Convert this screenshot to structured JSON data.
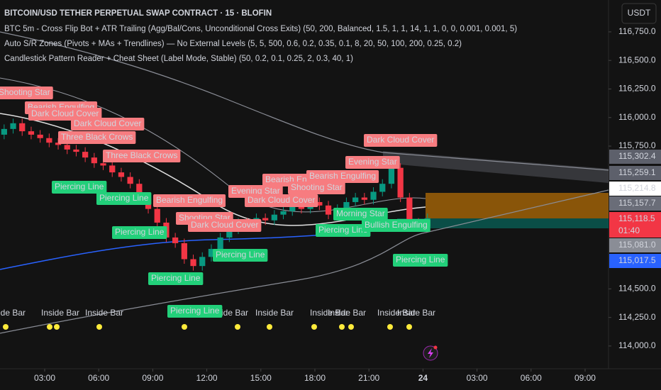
{
  "chart_data": {
    "type": "candlestick",
    "title": "BITCOIN/USD TETHER PERPETUAL SWAP CONTRACT · 15 · BLOFIN",
    "indicators": [
      "BTC 5m - Cross Flip Bot + ATR Trailing (Agg/Bal/Cons, Unconditional Cross Exits) (50, 200, Balanced, 1.5, 1, 1, 14, 1, 1, 0, 0, 0.001, 0.001, 5)",
      "Auto S/R Zones (Pivots + MAs + Trendlines) — No External Levels (5, 5, 500, 0.6, 0.2, 0.35, 0.1, 8, 20, 50, 100, 200, 0.25, 0.2)",
      "Candlestick Pattern Reader + Cheat Sheet (Label Mode, Stable) (50, 0.2, 0.1, 0.25, 2, 0.3, 40, 1)"
    ],
    "currency": "USDT",
    "countdown": "01:40",
    "up_color": "#089981",
    "down_color": "#f23645",
    "x": [
      0.75,
      1.25,
      1.75,
      2.25,
      2.75,
      3.25,
      3.75,
      4.25,
      4.75,
      5.25,
      5.75,
      6.25,
      6.75,
      7.25,
      7.75,
      8.25,
      8.75,
      9.25,
      9.75,
      10.25,
      10.75,
      11.25,
      11.75,
      12.25,
      12.75,
      13.25,
      13.75,
      14.25,
      14.75,
      15.25,
      15.75,
      16.25,
      16.75,
      17.25,
      17.75,
      18.25,
      18.75,
      19.25,
      19.75,
      20.25,
      20.75,
      21.25,
      21.75,
      22.25,
      22.75,
      23.25,
      23.75,
      24.25
    ],
    "open": [
      115850,
      115900,
      115950,
      115880,
      115850,
      115820,
      115780,
      115760,
      115720,
      115700,
      115650,
      115600,
      115580,
      115520,
      115480,
      115420,
      115300,
      115200,
      115080,
      114950,
      114900,
      114760,
      114700,
      114780,
      114850,
      114950,
      115020,
      115080,
      115060,
      115120,
      115100,
      115150,
      115180,
      115220,
      115200,
      115260,
      115230,
      115150,
      115200,
      115260,
      115300,
      115280,
      115350,
      115420,
      115560,
      115300,
      115080,
      115050
    ],
    "high": [
      115940,
      115990,
      115990,
      115920,
      115890,
      115860,
      115820,
      115800,
      115760,
      115740,
      115690,
      115640,
      115620,
      115560,
      115520,
      115460,
      115340,
      115240,
      115120,
      114990,
      114940,
      114800,
      114820,
      114890,
      114990,
      115060,
      115120,
      115120,
      115160,
      115160,
      115190,
      115220,
      115260,
      115260,
      115300,
      115300,
      115270,
      115240,
      115300,
      115340,
      115340,
      115390,
      115460,
      115640,
      115600,
      115340,
      115120,
      115160
    ],
    "low": [
      115810,
      115860,
      115840,
      115810,
      115780,
      115740,
      115720,
      115680,
      115660,
      115610,
      115560,
      115540,
      115480,
      115440,
      115380,
      115260,
      115160,
      115040,
      114910,
      114860,
      114720,
      114660,
      114660,
      114740,
      114810,
      114910,
      114980,
      115020,
      115020,
      115060,
      115060,
      115110,
      115140,
      115160,
      115160,
      115190,
      115110,
      115110,
      115160,
      115220,
      115240,
      115240,
      115310,
      115380,
      115260,
      115040,
      115010,
      115010
    ],
    "close": [
      115900,
      115950,
      115880,
      115850,
      115820,
      115780,
      115760,
      115720,
      115700,
      115650,
      115600,
      115580,
      115520,
      115480,
      115420,
      115300,
      115200,
      115080,
      114950,
      114900,
      114760,
      114700,
      114780,
      114850,
      114950,
      115020,
      115080,
      115060,
      115120,
      115100,
      115150,
      115180,
      115220,
      115200,
      115260,
      115230,
      115150,
      115200,
      115260,
      115300,
      115280,
      115350,
      115420,
      115560,
      115300,
      115080,
      115050,
      115118.5
    ],
    "xlim": [
      0.52,
      34.3
    ],
    "xticks": [
      {
        "value": 3,
        "label": "03:00"
      },
      {
        "value": 6,
        "label": "06:00"
      },
      {
        "value": 9,
        "label": "09:00"
      },
      {
        "value": 12,
        "label": "12:00"
      },
      {
        "value": 15,
        "label": "15:00"
      },
      {
        "value": 18,
        "label": "18:00"
      },
      {
        "value": 21,
        "label": "21:00"
      },
      24,
      {
        "value": 27,
        "label": "03:00"
      },
      {
        "value": 30,
        "label": "06:00"
      },
      {
        "value": 33,
        "label": "09:00"
      }
    ],
    "ylim": [
      113801,
      117029
    ],
    "yticks": [
      {
        "value": 116750,
        "label": "116,750.0"
      },
      {
        "value": 116500,
        "label": "116,500.0"
      },
      {
        "value": 116250,
        "label": "116,250.0"
      },
      {
        "value": 116000,
        "label": "116,000.0"
      },
      {
        "value": 115750,
        "label": "115,750.0"
      },
      {
        "value": 114500,
        "label": "114,500.0"
      },
      {
        "value": 114250,
        "label": "114,250.0"
      },
      {
        "value": 114000,
        "label": "114,000.0"
      }
    ],
    "price_tags": [
      {
        "value": 115302.4,
        "label": "115,302.4",
        "color": "#5d606b"
      },
      {
        "value": 115259.1,
        "label": "115,259.1",
        "color": "#5d606b"
      },
      {
        "value": 115214.8,
        "label": "115,214.8",
        "color": "#ffffff"
      },
      {
        "value": 115157.7,
        "label": "115,157.7",
        "color": "#6a6d78"
      },
      {
        "value": 115118.5,
        "label": "115,118.5",
        "color": "#f23645"
      },
      {
        "value": 115081.0,
        "label": "115,081.0",
        "color": "#8a8d96"
      },
      {
        "value": 115017.5,
        "label": "115,017.5",
        "color": "#2962ff"
      }
    ],
    "annotations": [
      {
        "text": "Shooting Star",
        "color": "#f77c80"
      },
      {
        "text": "Bearish Engulfing",
        "color": "#f77c80"
      },
      {
        "text": "Dark Cloud Cover",
        "color": "#f77c80"
      },
      {
        "text": "Dark Cloud Cover",
        "color": "#f77c80"
      },
      {
        "text": "Three Black Crows",
        "color": "#f77c80"
      },
      {
        "text": "Three Black Crows",
        "color": "#f77c80"
      },
      {
        "text": "Piercing Line",
        "color": "#22d07a"
      },
      {
        "text": "Piercing Line",
        "color": "#22d07a"
      },
      {
        "text": "Bearish Engulfing",
        "color": "#f77c80"
      },
      {
        "text": "Bearish Engulfing",
        "color": "#f77c80"
      },
      {
        "text": "Evening Star",
        "color": "#f77c80"
      },
      {
        "text": "Dark Cloud Cover",
        "color": "#f77c80"
      },
      {
        "text": "Shooting Star",
        "color": "#f77c80"
      },
      {
        "text": "Bearish Engulfing",
        "color": "#f77c80"
      },
      {
        "text": "Evening Star",
        "color": "#f77c80"
      },
      {
        "text": "Dark Cloud Cover",
        "color": "#f77c80"
      },
      {
        "text": "Shooting Star",
        "color": "#f77c80"
      },
      {
        "text": "Dark Cloud Cover",
        "color": "#f77c80"
      },
      {
        "text": "Piercing Line",
        "color": "#22d07a"
      },
      {
        "text": "Piercing Line",
        "color": "#22d07a"
      },
      {
        "text": "Piercing Line",
        "color": "#22d07a"
      },
      {
        "text": "Piercing Line",
        "color": "#22d07a"
      },
      {
        "text": "Morning Star",
        "color": "#22d07a"
      },
      {
        "text": "Piercing Line",
        "color": "#22d07a"
      },
      {
        "text": "Bullish Engulfing",
        "color": "#22d07a"
      },
      {
        "text": "Piercing Line",
        "color": "#22d07a"
      }
    ],
    "inside_bar_labels": [
      "Inside Bar",
      "Inside Bar",
      "Inside Bar",
      "Inside Bar",
      "Inside Bar",
      "Inside Bar",
      "Inside Bar",
      "Inside Bar",
      "Inside Bar"
    ]
  }
}
